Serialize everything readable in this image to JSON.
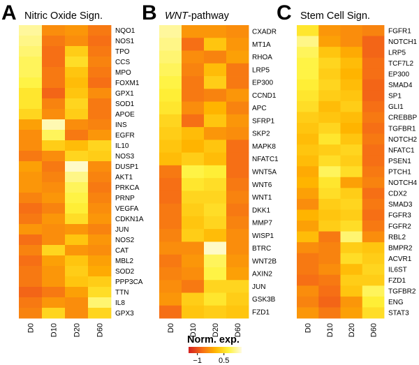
{
  "chart_data": [
    {
      "type": "heatmap",
      "panel": "A",
      "title": "Nitric Oxide Sign.",
      "columns": [
        "D0",
        "D10",
        "D20",
        "D60"
      ],
      "rows": [
        "NQO1",
        "NOS1",
        "TPO",
        "CCS",
        "MPO",
        "FOXM1",
        "GPX1",
        "SOD1",
        "APOE",
        "INS",
        "EGFR",
        "IL10",
        "NOS3",
        "DUSP1",
        "AKT1",
        "PRKCA",
        "PRNP",
        "VEGFA",
        "CDKN1A",
        "JUN",
        "NOS2",
        "CAT",
        "MBL2",
        "SOD2",
        "PPP3CA",
        "TTN",
        "IL8",
        "GPX3"
      ],
      "values": [
        [
          1.2,
          -0.4,
          -0.3,
          -0.6
        ],
        [
          1.1,
          -0.6,
          -0.4,
          -0.7
        ],
        [
          1.0,
          -0.7,
          0.3,
          -0.6
        ],
        [
          0.9,
          -0.7,
          0.5,
          -0.5
        ],
        [
          0.9,
          -0.6,
          0.2,
          -0.6
        ],
        [
          0.8,
          -0.6,
          0.1,
          -0.7
        ],
        [
          0.6,
          -0.8,
          0.2,
          -0.4
        ],
        [
          0.6,
          -0.5,
          0.4,
          -0.6
        ],
        [
          0.4,
          -0.4,
          0.3,
          -0.6
        ],
        [
          -0.2,
          1.3,
          -0.4,
          -0.5
        ],
        [
          -0.4,
          0.9,
          -0.6,
          -0.3
        ],
        [
          -0.4,
          0.3,
          0.1,
          0.4
        ],
        [
          -0.6,
          -0.4,
          0.4,
          0.3
        ],
        [
          -0.2,
          -0.6,
          1.4,
          -0.4
        ],
        [
          -0.3,
          -0.5,
          1.1,
          -0.5
        ],
        [
          -0.3,
          -0.4,
          0.9,
          -0.6
        ],
        [
          -0.5,
          -0.3,
          0.8,
          -0.5
        ],
        [
          -0.7,
          -0.5,
          0.7,
          -0.4
        ],
        [
          -0.6,
          -0.3,
          0.5,
          -0.3
        ],
        [
          -0.3,
          -0.4,
          -0.3,
          -0.5
        ],
        [
          -0.7,
          -0.4,
          0.2,
          -0.3
        ],
        [
          -0.5,
          0.4,
          -0.3,
          -0.4
        ],
        [
          -0.7,
          -0.2,
          0.2,
          -0.2
        ],
        [
          -0.6,
          -0.3,
          0.3,
          -0.1
        ],
        [
          -0.6,
          -0.3,
          0.2,
          0.3
        ],
        [
          -0.8,
          -0.6,
          -0.2,
          0.5
        ],
        [
          -0.6,
          -0.3,
          -0.4,
          1.0
        ],
        [
          -0.5,
          0.4,
          -0.4,
          0.4
        ]
      ]
    },
    {
      "type": "heatmap",
      "panel": "B",
      "title_italic": "WNT",
      "title_rest": "-pathway",
      "columns": [
        "D0",
        "D10",
        "D20",
        "D60"
      ],
      "rows": [
        "CXADR",
        "MT1A",
        "RHOA",
        "LRP5",
        "EP300",
        "CCND1",
        "APC",
        "SFRP1",
        "SKP2",
        "MAPK8",
        "NFATC1",
        "WNT5A",
        "WNT6",
        "WNT1",
        "DKK1",
        "MMP7",
        "WISP1",
        "BTRC",
        "WNT2B",
        "AXIN2",
        "JUN",
        "GSK3B",
        "FZD1"
      ],
      "values": [
        [
          1.2,
          -0.3,
          -0.3,
          -0.4
        ],
        [
          1.1,
          -0.7,
          0.2,
          -0.3
        ],
        [
          1.0,
          -0.4,
          -0.5,
          -0.2
        ],
        [
          0.9,
          -0.5,
          0.1,
          -0.6
        ],
        [
          0.8,
          -0.6,
          0.3,
          -0.6
        ],
        [
          0.7,
          -0.6,
          -0.5,
          -0.3
        ],
        [
          0.6,
          -0.4,
          0.0,
          -0.5
        ],
        [
          0.4,
          -0.7,
          0.2,
          -0.3
        ],
        [
          0.3,
          0.1,
          -0.3,
          -0.4
        ],
        [
          0.2,
          0.0,
          0.2,
          -0.7
        ],
        [
          0.1,
          0.3,
          0.1,
          -0.7
        ],
        [
          -0.6,
          0.8,
          0.7,
          -0.7
        ],
        [
          -0.7,
          0.6,
          0.5,
          -0.6
        ],
        [
          -0.7,
          0.4,
          0.4,
          -0.5
        ],
        [
          -0.6,
          0.3,
          0.5,
          -0.6
        ],
        [
          -0.6,
          0.2,
          0.4,
          -0.5
        ],
        [
          -0.5,
          0.3,
          0.1,
          -0.4
        ],
        [
          -0.4,
          -0.4,
          1.4,
          -0.4
        ],
        [
          -0.6,
          -0.3,
          0.9,
          -0.3
        ],
        [
          -0.5,
          -0.4,
          0.8,
          -0.2
        ],
        [
          -0.4,
          -0.6,
          0.4,
          0.4
        ],
        [
          -0.3,
          0.3,
          0.6,
          0.3
        ],
        [
          -0.7,
          0.2,
          0.3,
          0.2
        ]
      ]
    },
    {
      "type": "heatmap",
      "panel": "C",
      "title": "Stem Cell Sign.",
      "columns": [
        "D0",
        "D10",
        "D20",
        "D60"
      ],
      "rows": [
        "FGFR1",
        "NOTCH1",
        "LRP5",
        "TCF7L2",
        "EP300",
        "SMAD4",
        "SP1",
        "GLI1",
        "CREBBP",
        "TGFBR1",
        "NOTCH2",
        "NFATC1",
        "PSEN1",
        "PTCH1",
        "NOTCH4",
        "CDX2",
        "SMAD3",
        "FGFR3",
        "FGFR2",
        "RBL2",
        "BMPR2",
        "ACVR1",
        "IL6ST",
        "FZD1",
        "TGFBR2",
        "ENG",
        "STAT3"
      ],
      "values": [
        [
          0.6,
          -0.3,
          -0.4,
          -0.5
        ],
        [
          1.1,
          -0.2,
          -0.4,
          -0.8
        ],
        [
          0.9,
          0.2,
          -0.1,
          -0.8
        ],
        [
          0.8,
          0.4,
          0.1,
          -0.7
        ],
        [
          0.8,
          0.3,
          0.0,
          -0.7
        ],
        [
          0.7,
          0.4,
          0.1,
          -0.8
        ],
        [
          0.6,
          0.3,
          0.2,
          -0.8
        ],
        [
          0.5,
          0.1,
          0.3,
          -0.7
        ],
        [
          0.3,
          0.2,
          0.1,
          -0.6
        ],
        [
          0.2,
          0.4,
          0.0,
          -0.7
        ],
        [
          0.1,
          0.6,
          0.2,
          -0.6
        ],
        [
          0.2,
          0.3,
          0.4,
          -0.7
        ],
        [
          0.1,
          0.5,
          0.3,
          -0.7
        ],
        [
          -0.1,
          0.9,
          0.5,
          -0.6
        ],
        [
          0.0,
          0.6,
          -0.2,
          -0.5
        ],
        [
          -0.2,
          0.5,
          0.3,
          -0.7
        ],
        [
          -0.4,
          0.3,
          0.4,
          -0.6
        ],
        [
          0.0,
          0.2,
          0.3,
          -0.7
        ],
        [
          -0.2,
          0.3,
          0.5,
          -0.6
        ],
        [
          0.1,
          -0.6,
          1.0,
          -0.4
        ],
        [
          -0.4,
          -0.5,
          0.3,
          0.2
        ],
        [
          -0.6,
          -0.5,
          0.5,
          0.3
        ],
        [
          -0.6,
          -0.4,
          0.1,
          0.4
        ],
        [
          -0.7,
          -0.6,
          0.3,
          0.3
        ],
        [
          -0.4,
          -0.7,
          0.2,
          0.9
        ],
        [
          -0.5,
          -0.8,
          -0.3,
          0.7
        ],
        [
          -0.3,
          -0.6,
          -0.2,
          0.5
        ]
      ]
    }
  ],
  "panels": {
    "a": {
      "letter": "A",
      "title": "Nitric Oxide Sign."
    },
    "b": {
      "letter": "B",
      "title_italic": "WNT",
      "title_rest": "-pathway"
    },
    "c": {
      "letter": "C",
      "title": "Stem Cell Sign."
    }
  },
  "legend": {
    "title": "Norm. exp.",
    "ticks": [
      "−1",
      "0.5"
    ],
    "tick_values": [
      -1,
      0.5
    ],
    "range": [
      -1.5,
      1.5
    ],
    "colors": [
      "#D42020",
      "#F56A16",
      "#FFB400",
      "#FFF23A",
      "#FFFBDE"
    ]
  }
}
